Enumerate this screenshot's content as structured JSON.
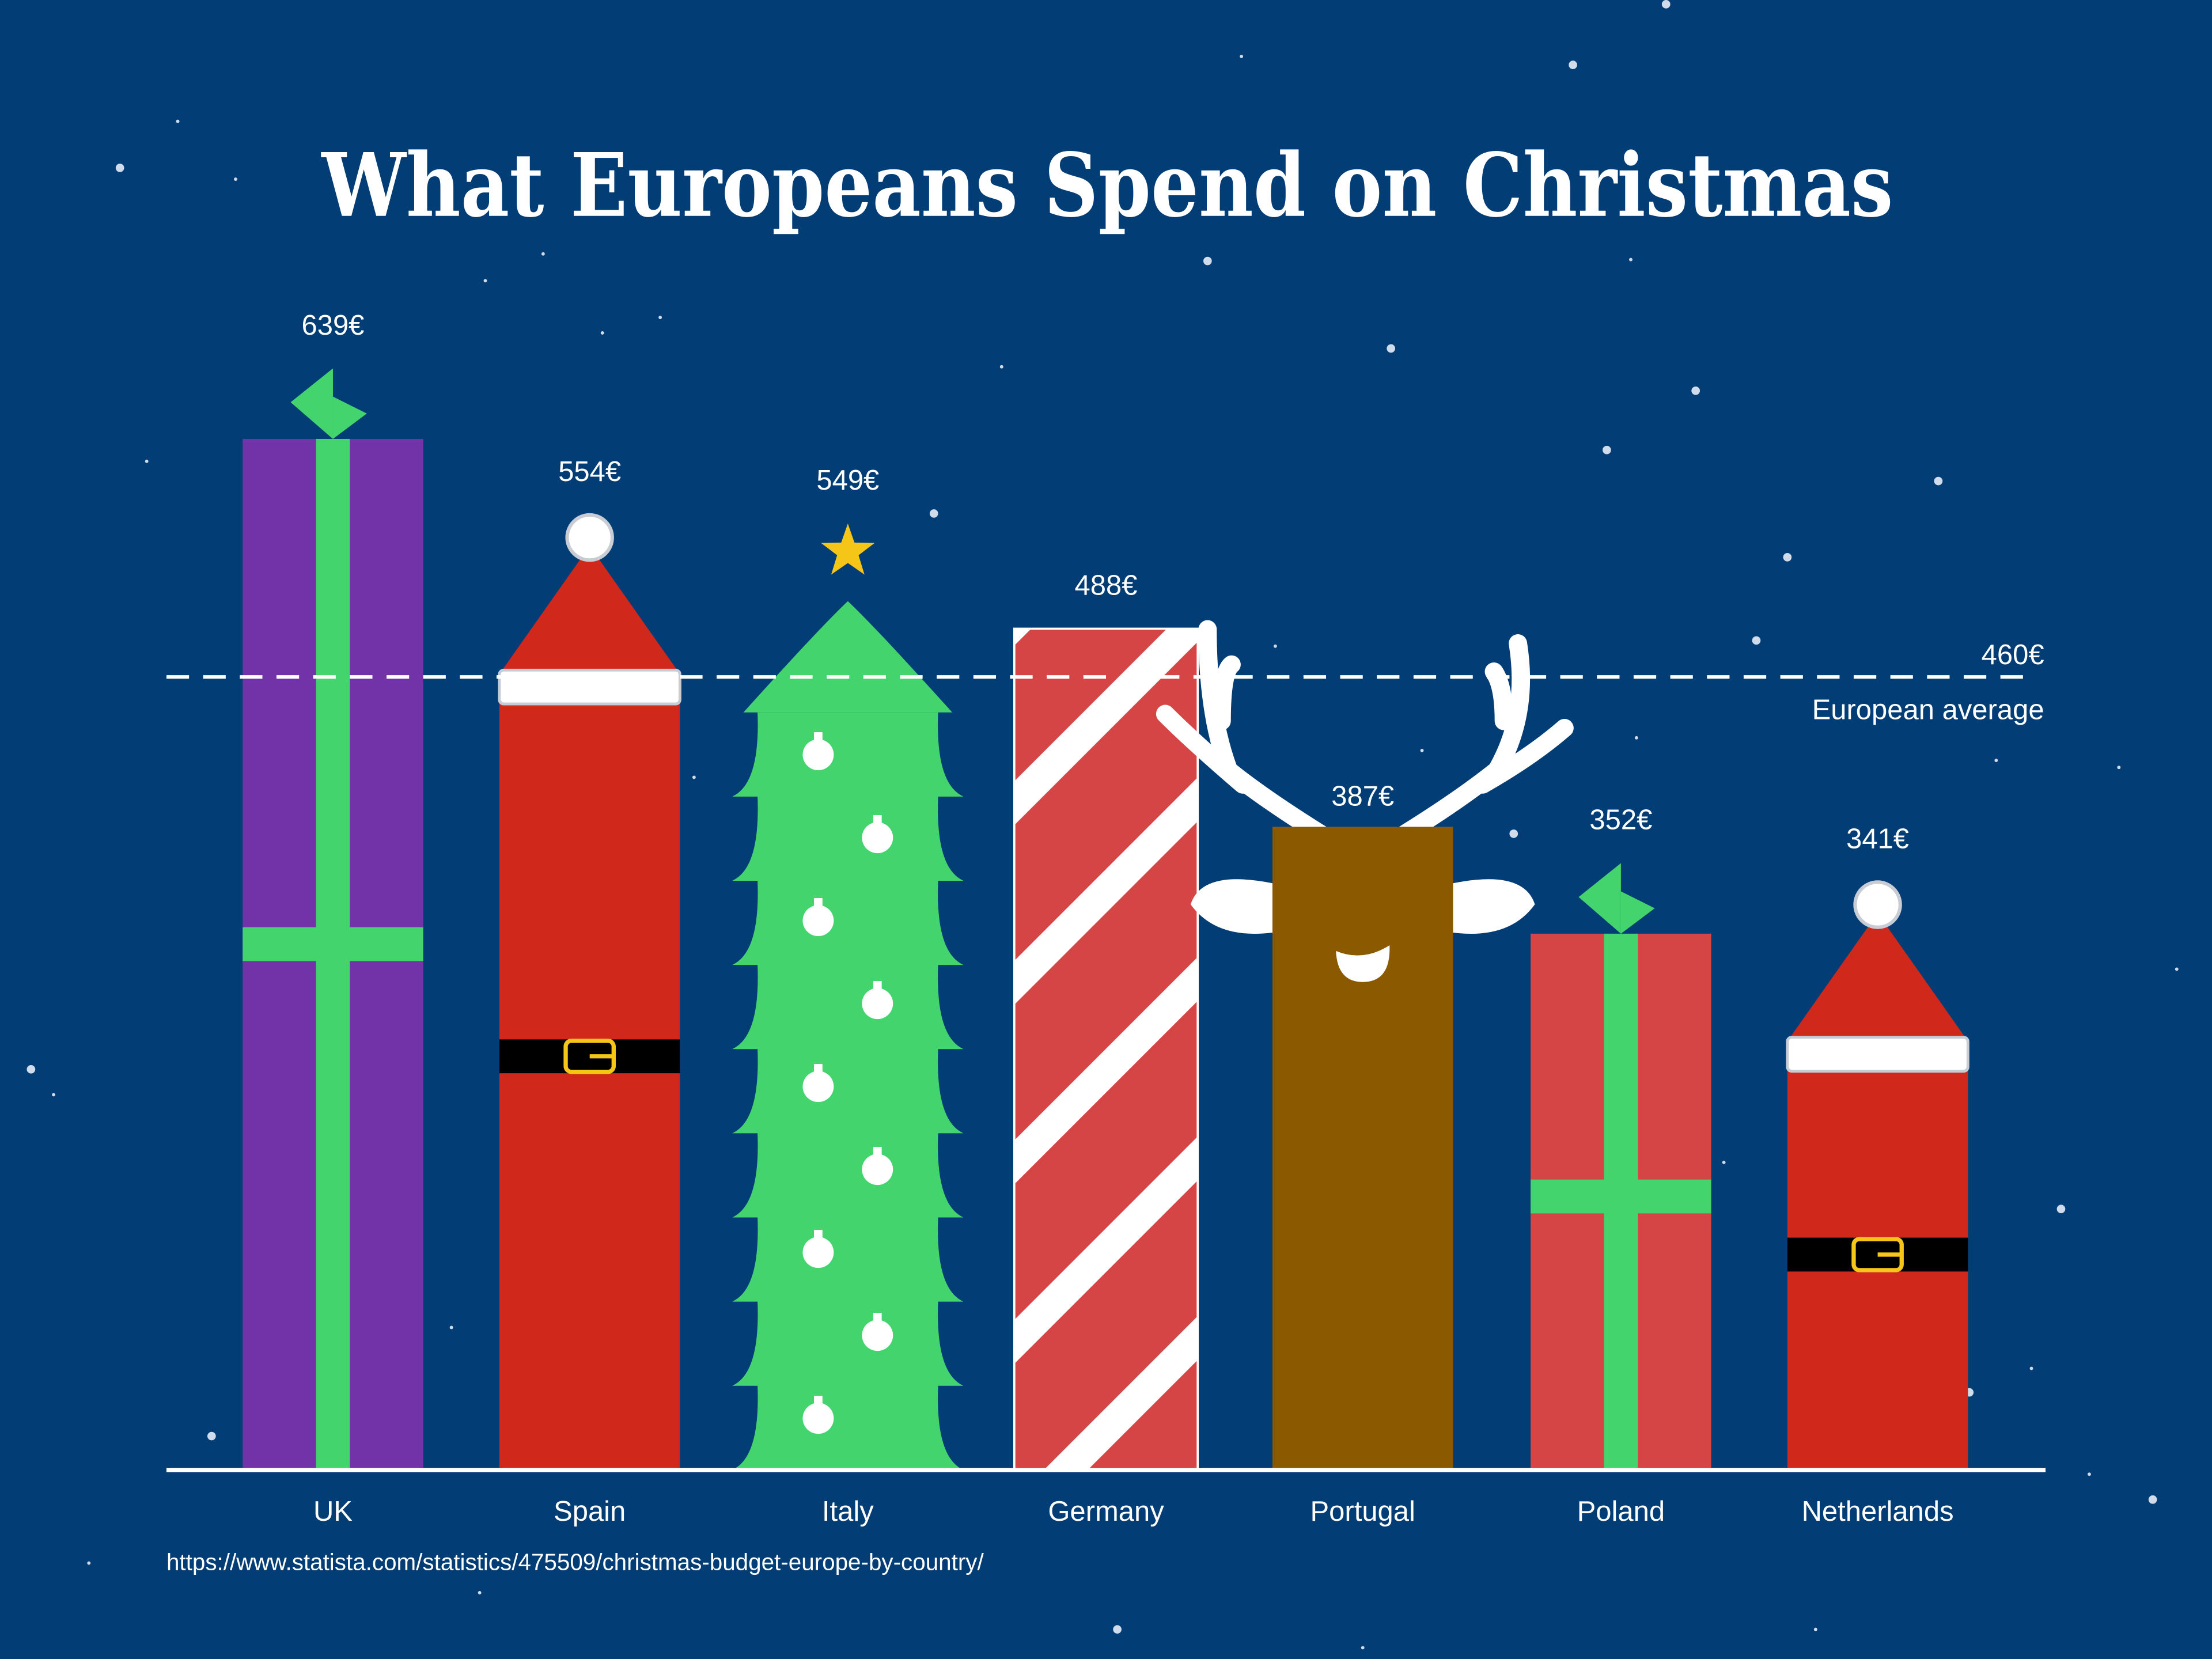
{
  "chart_data": {
    "type": "bar",
    "title": "What Europeans Spend on Christmas",
    "categories": [
      "UK",
      "Spain",
      "Italy",
      "Germany",
      "Portugal",
      "Poland",
      "Netherlands"
    ],
    "values": [
      639,
      554,
      549,
      488,
      387,
      352,
      341
    ],
    "value_labels": [
      "639€",
      "554€",
      "549€",
      "488€",
      "387€",
      "352€",
      "341€"
    ],
    "bar_styles": [
      "gift-purple",
      "santa",
      "christmas-tree",
      "candy-cane",
      "reindeer",
      "gift-red",
      "santa"
    ],
    "unit": "€",
    "ylim": [
      0,
      850
    ],
    "grid": false,
    "reference_line": {
      "value": 460,
      "value_label": "460€",
      "label": "European average",
      "style": "dashed"
    },
    "source": "https://www.statista.com/statistics/475509/christmas-budget-europe-by-country/"
  },
  "colors": {
    "background": "#023d75",
    "gift_purple": "#7233a8",
    "gift_red": "#d64545",
    "ribbon": "#44d46e",
    "santa_red": "#d0291c",
    "tree_green": "#44d46e",
    "star": "#f5c518",
    "reindeer_brown": "#8b5a00",
    "white": "#ffffff"
  }
}
